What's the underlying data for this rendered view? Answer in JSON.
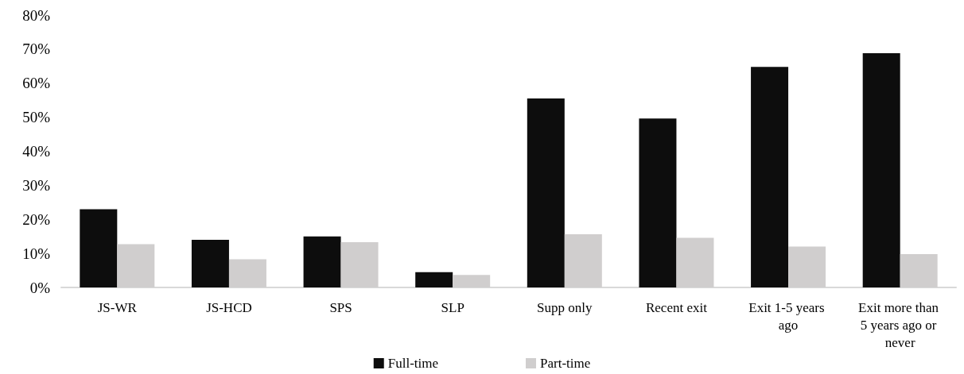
{
  "chart_data": {
    "type": "bar",
    "categories": [
      "JS-WR",
      "JS-HCD",
      "SPS",
      "SLP",
      "Supp only",
      "Recent exit",
      "Exit 1-5 years ago",
      "Exit more than 5 years ago or never"
    ],
    "series": [
      {
        "name": "Full-time",
        "color": "#0d0d0d",
        "values": [
          23,
          14,
          15,
          4.5,
          55.5,
          49.6,
          64.8,
          68.8
        ]
      },
      {
        "name": "Part-time",
        "color": "#d0cece",
        "values": [
          12.7,
          8.3,
          13.3,
          3.7,
          15.6,
          14.6,
          12,
          9.8
        ]
      }
    ],
    "ylim": [
      0,
      80
    ],
    "yticks": [
      {
        "value": 0,
        "label": "0%"
      },
      {
        "value": 10,
        "label": "10%"
      },
      {
        "value": 20,
        "label": "20%"
      },
      {
        "value": 30,
        "label": "30%"
      },
      {
        "value": 40,
        "label": "40%"
      },
      {
        "value": 50,
        "label": "50%"
      },
      {
        "value": 60,
        "label": "60%"
      },
      {
        "value": 70,
        "label": "70%"
      },
      {
        "value": 80,
        "label": "80%"
      }
    ],
    "grid": false,
    "legend": "bottom"
  }
}
